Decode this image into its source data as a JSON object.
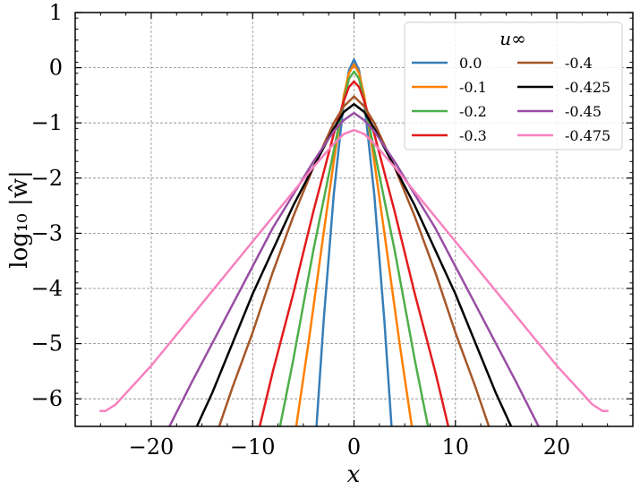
{
  "chart_data": {
    "type": "line",
    "xlabel": "x",
    "ylabel": "log₁₀ |ŵ|",
    "xlim": [
      -27.5,
      27.5
    ],
    "ylim": [
      -6.5,
      1
    ],
    "x_ticks": [
      -20,
      -10,
      0,
      10,
      20
    ],
    "x_tick_labels": [
      "−20",
      "−10",
      "0",
      "10",
      "20"
    ],
    "y_ticks": [
      1,
      0,
      -1,
      -2,
      -3,
      -4,
      -5,
      -6
    ],
    "y_tick_labels": [
      "1",
      "0",
      "−1",
      "−2",
      "−3",
      "−4",
      "−5",
      "−6"
    ],
    "grid": true,
    "legend": {
      "title": "u∞",
      "placement": "top-right",
      "columns": 2
    },
    "series": [
      {
        "name": "0.0",
        "color": "#377eb8",
        "peak": 0.15,
        "points": [
          [
            -3.7,
            -6.5
          ],
          [
            -3,
            -4.6
          ],
          [
            -2,
            -2.3
          ],
          [
            -1,
            -0.6
          ],
          [
            -0.5,
            -0.05
          ],
          [
            0,
            0.15
          ],
          [
            0.5,
            -0.05
          ],
          [
            1,
            -0.6
          ],
          [
            2,
            -2.3
          ],
          [
            3,
            -4.6
          ],
          [
            3.7,
            -6.5
          ]
        ]
      },
      {
        "name": "-0.1",
        "color": "#ff7f00",
        "peak": 0.06,
        "points": [
          [
            -5.7,
            -6.5
          ],
          [
            -4.5,
            -5.0
          ],
          [
            -3,
            -3.0
          ],
          [
            -2,
            -1.7
          ],
          [
            -1,
            -0.5
          ],
          [
            -0.5,
            -0.1
          ],
          [
            0,
            0.06
          ],
          [
            0.5,
            -0.1
          ],
          [
            1,
            -0.5
          ],
          [
            2,
            -1.7
          ],
          [
            3,
            -3.0
          ],
          [
            4.5,
            -5.0
          ],
          [
            5.7,
            -6.5
          ]
        ]
      },
      {
        "name": "-0.2",
        "color": "#4daf4a",
        "peak": -0.07,
        "points": [
          [
            -7.3,
            -6.5
          ],
          [
            -6,
            -5.3
          ],
          [
            -4,
            -3.3
          ],
          [
            -2,
            -1.5
          ],
          [
            -1,
            -0.6
          ],
          [
            -0.5,
            -0.2
          ],
          [
            0,
            -0.07
          ],
          [
            0.5,
            -0.2
          ],
          [
            1,
            -0.6
          ],
          [
            2,
            -1.5
          ],
          [
            4,
            -3.3
          ],
          [
            6,
            -5.3
          ],
          [
            7.3,
            -6.5
          ]
        ]
      },
      {
        "name": "-0.3",
        "color": "#e41a1c",
        "peak": -0.25,
        "points": [
          [
            -9.3,
            -6.5
          ],
          [
            -8,
            -5.5
          ],
          [
            -6,
            -4.1
          ],
          [
            -4,
            -2.6
          ],
          [
            -2,
            -1.2
          ],
          [
            -1,
            -0.6
          ],
          [
            -0.5,
            -0.35
          ],
          [
            0,
            -0.25
          ],
          [
            0.5,
            -0.35
          ],
          [
            1,
            -0.6
          ],
          [
            2,
            -1.2
          ],
          [
            4,
            -2.6
          ],
          [
            6,
            -4.1
          ],
          [
            8,
            -5.5
          ],
          [
            9.3,
            -6.5
          ]
        ]
      },
      {
        "name": "-0.4",
        "color": "#a65628",
        "peak": -0.52,
        "points": [
          [
            -13.3,
            -6.5
          ],
          [
            -12,
            -5.8
          ],
          [
            -10,
            -4.8
          ],
          [
            -8,
            -3.7
          ],
          [
            -6,
            -2.7
          ],
          [
            -4,
            -1.8
          ],
          [
            -2,
            -1.0
          ],
          [
            -1,
            -0.7
          ],
          [
            0,
            -0.52
          ],
          [
            1,
            -0.7
          ],
          [
            2,
            -1.0
          ],
          [
            4,
            -1.8
          ],
          [
            6,
            -2.7
          ],
          [
            8,
            -3.7
          ],
          [
            10,
            -4.8
          ],
          [
            12,
            -5.8
          ],
          [
            13.3,
            -6.5
          ]
        ]
      },
      {
        "name": "-0.425",
        "color": "#000000",
        "peak": -0.66,
        "points": [
          [
            -15.5,
            -6.5
          ],
          [
            -14,
            -5.9
          ],
          [
            -12,
            -5.0
          ],
          [
            -10,
            -4.1
          ],
          [
            -8,
            -3.3
          ],
          [
            -6,
            -2.5
          ],
          [
            -4,
            -1.8
          ],
          [
            -2,
            -1.1
          ],
          [
            -1,
            -0.8
          ],
          [
            0,
            -0.66
          ],
          [
            1,
            -0.8
          ],
          [
            2,
            -1.1
          ],
          [
            4,
            -1.8
          ],
          [
            6,
            -2.5
          ],
          [
            8,
            -3.3
          ],
          [
            10,
            -4.1
          ],
          [
            12,
            -5.0
          ],
          [
            14,
            -5.9
          ],
          [
            15.5,
            -6.5
          ]
        ]
      },
      {
        "name": "-0.45",
        "color": "#984ea3",
        "peak": -0.82,
        "points": [
          [
            -18.2,
            -6.5
          ],
          [
            -16,
            -5.7
          ],
          [
            -14,
            -5.0
          ],
          [
            -12,
            -4.3
          ],
          [
            -10,
            -3.6
          ],
          [
            -8,
            -2.9
          ],
          [
            -6,
            -2.3
          ],
          [
            -4,
            -1.7
          ],
          [
            -2,
            -1.15
          ],
          [
            -1,
            -0.95
          ],
          [
            0,
            -0.82
          ],
          [
            1,
            -0.95
          ],
          [
            2,
            -1.15
          ],
          [
            4,
            -1.7
          ],
          [
            6,
            -2.3
          ],
          [
            8,
            -2.9
          ],
          [
            10,
            -3.6
          ],
          [
            12,
            -4.3
          ],
          [
            14,
            -5.0
          ],
          [
            16,
            -5.7
          ],
          [
            18.2,
            -6.5
          ]
        ]
      },
      {
        "name": "-0.475",
        "color": "#f781bf",
        "peak": -1.13,
        "points": [
          [
            -25,
            -6.22
          ],
          [
            -24.5,
            -6.22
          ],
          [
            -23.5,
            -6.1
          ],
          [
            -22,
            -5.8
          ],
          [
            -20,
            -5.4
          ],
          [
            -18,
            -4.95
          ],
          [
            -16,
            -4.5
          ],
          [
            -14,
            -4.05
          ],
          [
            -12,
            -3.6
          ],
          [
            -10,
            -3.15
          ],
          [
            -8,
            -2.7
          ],
          [
            -6,
            -2.25
          ],
          [
            -4,
            -1.8
          ],
          [
            -2,
            -1.38
          ],
          [
            -1,
            -1.2
          ],
          [
            0,
            -1.13
          ],
          [
            1,
            -1.2
          ],
          [
            2,
            -1.38
          ],
          [
            4,
            -1.8
          ],
          [
            6,
            -2.25
          ],
          [
            8,
            -2.7
          ],
          [
            10,
            -3.15
          ],
          [
            12,
            -3.6
          ],
          [
            14,
            -4.05
          ],
          [
            16,
            -4.5
          ],
          [
            18,
            -4.95
          ],
          [
            20,
            -5.4
          ],
          [
            22,
            -5.8
          ],
          [
            23.5,
            -6.1
          ],
          [
            24.5,
            -6.22
          ],
          [
            25,
            -6.22
          ]
        ]
      }
    ]
  }
}
